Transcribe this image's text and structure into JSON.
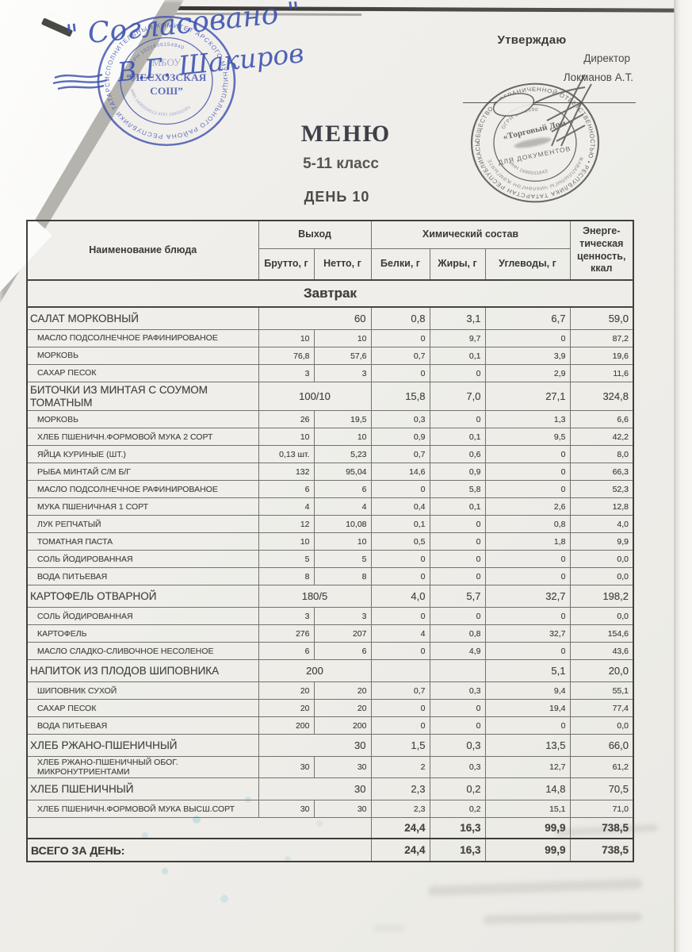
{
  "approval": {
    "approve_label": "Утверждаю",
    "role": "Директор",
    "name": "Локманов А.Т."
  },
  "handwriting": {
    "approved_text": "\" Согласовано \"",
    "signature": "В.Г. Шакиров"
  },
  "title": {
    "main": "МЕНЮ",
    "subtitle": "5-11 класс",
    "day": "ДЕНЬ 10"
  },
  "stamps": {
    "school": {
      "ring": "ИСПОЛНИТЕЛЬНЫЙ КОМИТЕТ АРСКОГО МУНИЦИПАЛЬНОГО РАЙОНА РЕСПУБЛИКИ ТАТАРСТАН •",
      "ogrn": "ОГРН 1021606154840",
      "center_line1": "МБОУ",
      "center_line2": "“ЛЕСХОЗСКАЯ",
      "center_line3": "СОШ”",
      "inn": "ИНН 1605004613 КПП 160501001"
    },
    "company": {
      "ring": "ОБЩЕСТВО С ОГРАНИЧЕННОЙ ОТВЕТСТВЕННОСТЬЮ • РЕСПУБЛИКА ТАТАРСТАН РЕСПУБЛИКАСЫ •",
      "ring_inner": "ЖАВАПЛЫЛЫГЫ ЧИКЛӘНГӘН ҖӘМГЫЯТЕ",
      "ogrn": "ОГРН 1091690",
      "center_line1": "«Торговый Дом",
      "doc_label": "ДЛЯ ДОКУМЕНТОВ",
      "inn": "ИНН 1690011843"
    }
  },
  "table": {
    "headers": {
      "name": "Наименование блюда",
      "vyhod_group": "Выход",
      "chem_group": "Химический состав",
      "brutto": "Брутто, г",
      "netto": "Нетто, г",
      "belki": "Белки, г",
      "zhiry": "Жиры, г",
      "uglevody": "Углеводы, г",
      "energy": "Энерге- тическая ценность, ккал"
    },
    "section_title": "Завтрак",
    "rows": [
      {
        "type": "dish",
        "name": "САЛАТ МОРКОВНЫЙ",
        "vyhod": "60",
        "vyhod_align": "right",
        "belki": "0,8",
        "zhiry": "3,1",
        "uglevody": "6,7",
        "kkal": "59,0"
      },
      {
        "type": "ingredient",
        "name": "МАСЛО ПОДСОЛНЕЧНОЕ РАФИНИРОВАНОЕ",
        "brutto": "10",
        "netto": "10",
        "belki": "0",
        "zhiry": "9,7",
        "uglevody": "0",
        "kkal": "87,2"
      },
      {
        "type": "ingredient",
        "name": "МОРКОВЬ",
        "brutto": "76,8",
        "netto": "57,6",
        "belki": "0,7",
        "zhiry": "0,1",
        "uglevody": "3,9",
        "kkal": "19,6"
      },
      {
        "type": "ingredient",
        "name": "САХАР ПЕСОК",
        "brutto": "3",
        "netto": "3",
        "belki": "0",
        "zhiry": "0",
        "uglevody": "2,9",
        "kkal": "11,6"
      },
      {
        "type": "dish",
        "name": "БИТОЧКИ ИЗ МИНТАЯ С СОУМОМ ТОМАТНЫМ",
        "vyhod": "100/10",
        "vyhod_align": "center",
        "belki": "15,8",
        "zhiry": "7,0",
        "uglevody": "27,1",
        "kkal": "324,8"
      },
      {
        "type": "ingredient",
        "name": "МОРКОВЬ",
        "brutto": "26",
        "netto": "19,5",
        "belki": "0,3",
        "zhiry": "0",
        "uglevody": "1,3",
        "kkal": "6,6"
      },
      {
        "type": "ingredient",
        "name": "ХЛЕБ ПШЕНИЧН.ФОРМОВОЙ МУКА 2 СОРТ",
        "brutto": "10",
        "netto": "10",
        "belki": "0,9",
        "zhiry": "0,1",
        "uglevody": "9,5",
        "kkal": "42,2"
      },
      {
        "type": "ingredient",
        "name": "ЯЙЦА КУРИНЫЕ (ШТ.)",
        "brutto": "0,13 шт.",
        "netto": "5,23",
        "belki": "0,7",
        "zhiry": "0,6",
        "uglevody": "0",
        "kkal": "8,0"
      },
      {
        "type": "ingredient",
        "name": "РЫБА МИНТАЙ С/М Б/Г",
        "brutto": "132",
        "netto": "95,04",
        "belki": "14,6",
        "zhiry": "0,9",
        "uglevody": "0",
        "kkal": "66,3"
      },
      {
        "type": "ingredient",
        "name": "МАСЛО ПОДСОЛНЕЧНОЕ РАФИНИРОВАНОЕ",
        "brutto": "6",
        "netto": "6",
        "belki": "0",
        "zhiry": "5,8",
        "uglevody": "0",
        "kkal": "52,3"
      },
      {
        "type": "ingredient",
        "name": "МУКА ПШЕНИЧНАЯ 1 СОРТ",
        "brutto": "4",
        "netto": "4",
        "belki": "0,4",
        "zhiry": "0,1",
        "uglevody": "2,6",
        "kkal": "12,8"
      },
      {
        "type": "ingredient",
        "name": "ЛУК РЕПЧАТЫЙ",
        "brutto": "12",
        "netto": "10,08",
        "belki": "0,1",
        "zhiry": "0",
        "uglevody": "0,8",
        "kkal": "4,0"
      },
      {
        "type": "ingredient",
        "name": "ТОМАТНАЯ ПАСТА",
        "brutto": "10",
        "netto": "10",
        "belki": "0,5",
        "zhiry": "0",
        "uglevody": "1,8",
        "kkal": "9,9"
      },
      {
        "type": "ingredient",
        "name": "СОЛЬ  ЙОДИРОВАННАЯ",
        "brutto": "5",
        "netto": "5",
        "belki": "0",
        "zhiry": "0",
        "uglevody": "0",
        "kkal": "0,0"
      },
      {
        "type": "ingredient",
        "name": "ВОДА ПИТЬЕВАЯ",
        "brutto": "8",
        "netto": "8",
        "belki": "0",
        "zhiry": "0",
        "uglevody": "0",
        "kkal": "0,0"
      },
      {
        "type": "dish",
        "name": "КАРТОФЕЛЬ ОТВАРНОЙ",
        "vyhod": "180/5",
        "vyhod_align": "center",
        "belki": "4,0",
        "zhiry": "5,7",
        "uglevody": "32,7",
        "kkal": "198,2"
      },
      {
        "type": "ingredient",
        "name": "СОЛЬ  ЙОДИРОВАННАЯ",
        "brutto": "3",
        "netto": "3",
        "belki": "0",
        "zhiry": "0",
        "uglevody": "0",
        "kkal": "0,0"
      },
      {
        "type": "ingredient",
        "name": "КАРТОФЕЛЬ",
        "brutto": "276",
        "netto": "207",
        "belki": "4",
        "zhiry": "0,8",
        "uglevody": "32,7",
        "kkal": "154,6"
      },
      {
        "type": "ingredient",
        "name": "МАСЛО СЛАДКО-СЛИВОЧНОЕ НЕСОЛЕНОЕ",
        "brutto": "6",
        "netto": "6",
        "belki": "0",
        "zhiry": "4,9",
        "uglevody": "0",
        "kkal": "43,6"
      },
      {
        "type": "dish",
        "name": "НАПИТОК ИЗ ПЛОДОВ ШИПОВНИКА",
        "vyhod": "200",
        "vyhod_align": "center",
        "belki": "",
        "zhiry": "",
        "uglevody": "5,1",
        "kkal": "20,0"
      },
      {
        "type": "ingredient",
        "name": "ШИПОВНИК СУХОЙ",
        "brutto": "20",
        "netto": "20",
        "belki": "0,7",
        "zhiry": "0,3",
        "uglevody": "9,4",
        "kkal": "55,1"
      },
      {
        "type": "ingredient",
        "name": "САХАР ПЕСОК",
        "brutto": "20",
        "netto": "20",
        "belki": "0",
        "zhiry": "0",
        "uglevody": "19,4",
        "kkal": "77,4"
      },
      {
        "type": "ingredient",
        "name": "ВОДА ПИТЬЕВАЯ",
        "brutto": "200",
        "netto": "200",
        "belki": "0",
        "zhiry": "0",
        "uglevody": "0",
        "kkal": "0,0"
      },
      {
        "type": "dish",
        "name": "ХЛЕБ РЖАНО-ПШЕНИЧНЫЙ",
        "vyhod": "30",
        "vyhod_align": "right",
        "belki": "1,5",
        "zhiry": "0,3",
        "uglevody": "13,5",
        "kkal": "66,0"
      },
      {
        "type": "ingredient",
        "name": "ХЛЕБ РЖАНО-ПШЕНИЧНЫЙ ОБОГ. МИКРОНУТРИЕНТАМИ",
        "brutto": "30",
        "netto": "30",
        "belki": "2",
        "zhiry": "0,3",
        "uglevody": "12,7",
        "kkal": "61,2"
      },
      {
        "type": "dish",
        "name": "ХЛЕБ ПШЕНИЧНЫЙ",
        "vyhod": "30",
        "vyhod_align": "right",
        "belki": "2,3",
        "zhiry": "0,2",
        "uglevody": "14,8",
        "kkal": "70,5"
      },
      {
        "type": "ingredient",
        "name": "ХЛЕБ ПШЕНИЧН.ФОРМОВОЙ МУКА ВЫСШ.СОРТ",
        "brutto": "30",
        "netto": "30",
        "belki": "2,3",
        "zhiry": "0,2",
        "uglevody": "15,1",
        "kkal": "71,0"
      }
    ],
    "subtotal": {
      "belki": "24,4",
      "zhiry": "16,3",
      "uglevody": "99,9",
      "kkal": "738,5"
    },
    "total": {
      "label": "ВСЕГО ЗА ДЕНЬ:",
      "belki": "24,4",
      "zhiry": "16,3",
      "uglevody": "99,9",
      "kkal": "738,5"
    }
  }
}
